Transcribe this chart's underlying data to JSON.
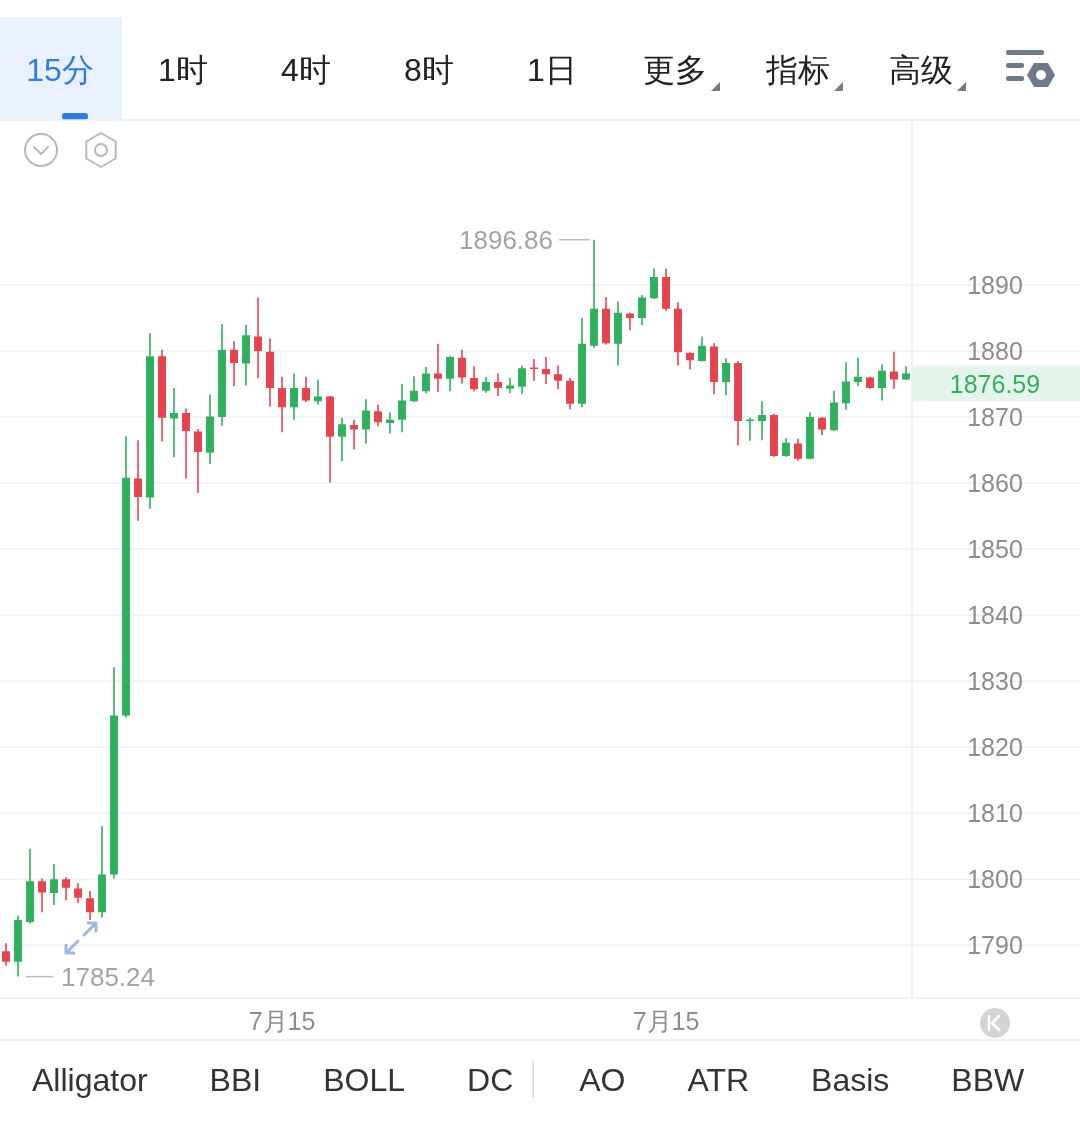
{
  "chart_data": {
    "type": "candlestick",
    "categories": [
      null,
      null,
      null,
      null,
      null,
      null,
      null,
      null,
      null,
      null,
      null,
      null,
      null,
      null,
      null,
      null,
      null,
      null,
      null,
      null,
      null,
      null,
      null,
      "7月15",
      null,
      null,
      null,
      null,
      null,
      null,
      null,
      null,
      null,
      null,
      null,
      null,
      null,
      null,
      null,
      null,
      null,
      null,
      null,
      null,
      null,
      null,
      null,
      null,
      null,
      null,
      null,
      null,
      null,
      null,
      null,
      "7月15",
      null,
      null,
      null,
      null,
      null,
      null,
      null,
      null,
      null,
      null,
      null,
      null,
      null,
      null,
      null,
      null,
      null,
      null,
      null,
      null
    ],
    "ohlc": [
      [
        1789.1,
        1790.3,
        1786.9,
        1787.5
      ],
      [
        1787.5,
        1794.5,
        1785.24,
        1793.8
      ],
      [
        1793.5,
        1804.6,
        1793.3,
        1799.7
      ],
      [
        1799.7,
        1800.1,
        1795.0,
        1798.0
      ],
      [
        1797.9,
        1802.3,
        1796.1,
        1800.0
      ],
      [
        1800.0,
        1800.3,
        1796.8,
        1798.7
      ],
      [
        1798.6,
        1799.4,
        1796.4,
        1797.2
      ],
      [
        1797.1,
        1798.2,
        1793.8,
        1795.0
      ],
      [
        1795.0,
        1808.0,
        1794.2,
        1800.7
      ],
      [
        1800.7,
        1832.1,
        1800.1,
        1824.8
      ],
      [
        1824.8,
        1867.1,
        1824.5,
        1860.8
      ],
      [
        1860.7,
        1866.5,
        1854.3,
        1857.9
      ],
      [
        1857.8,
        1882.7,
        1856.1,
        1879.2
      ],
      [
        1879.2,
        1880.2,
        1866.3,
        1869.9
      ],
      [
        1869.8,
        1874.4,
        1863.9,
        1870.6
      ],
      [
        1870.6,
        1871.3,
        1860.7,
        1867.9
      ],
      [
        1867.8,
        1868.2,
        1858.5,
        1864.7
      ],
      [
        1864.6,
        1873.4,
        1862.9,
        1870.1
      ],
      [
        1870.0,
        1884.1,
        1868.7,
        1880.2
      ],
      [
        1880.2,
        1881.5,
        1874.7,
        1878.2
      ],
      [
        1878.1,
        1884.0,
        1874.8,
        1882.4
      ],
      [
        1882.2,
        1888.1,
        1875.9,
        1880.0
      ],
      [
        1879.9,
        1881.9,
        1871.6,
        1874.4
      ],
      [
        1874.4,
        1876.1,
        1867.7,
        1871.5
      ],
      [
        1871.5,
        1876.6,
        1869.6,
        1874.4
      ],
      [
        1874.4,
        1876.1,
        1872.3,
        1872.5
      ],
      [
        1872.4,
        1875.7,
        1871.9,
        1873.1
      ],
      [
        1873.1,
        1873.2,
        1860.1,
        1867.0
      ],
      [
        1867.0,
        1869.9,
        1863.3,
        1868.9
      ],
      [
        1868.8,
        1869.6,
        1865.1,
        1868.1
      ],
      [
        1868.1,
        1872.7,
        1866.0,
        1871.0
      ],
      [
        1870.9,
        1871.9,
        1868.6,
        1869.2
      ],
      [
        1869.1,
        1870.7,
        1867.5,
        1869.6
      ],
      [
        1869.6,
        1875.0,
        1867.7,
        1872.5
      ],
      [
        1872.4,
        1876.2,
        1872.3,
        1874.0
      ],
      [
        1873.9,
        1877.6,
        1873.6,
        1876.6
      ],
      [
        1876.6,
        1881.1,
        1873.8,
        1875.8
      ],
      [
        1875.8,
        1879.2,
        1873.9,
        1879.1
      ],
      [
        1879.0,
        1880.2,
        1875.1,
        1876.0
      ],
      [
        1875.9,
        1877.7,
        1873.9,
        1874.2
      ],
      [
        1874.0,
        1876.1,
        1873.7,
        1875.3
      ],
      [
        1875.3,
        1876.6,
        1873.2,
        1874.4
      ],
      [
        1874.3,
        1875.9,
        1873.6,
        1874.8
      ],
      [
        1874.6,
        1877.8,
        1873.5,
        1877.4
      ],
      [
        1877.5,
        1878.8,
        1875.5,
        1877.3
      ],
      [
        1877.3,
        1879.1,
        1875.0,
        1876.5
      ],
      [
        1876.5,
        1877.8,
        1874.2,
        1875.5
      ],
      [
        1875.5,
        1875.9,
        1871.2,
        1872.0
      ],
      [
        1872.0,
        1885.0,
        1871.5,
        1881.1
      ],
      [
        1880.8,
        1896.86,
        1880.5,
        1886.4
      ],
      [
        1886.4,
        1888.2,
        1881.0,
        1881.2
      ],
      [
        1881.1,
        1887.5,
        1877.8,
        1885.8
      ],
      [
        1885.7,
        1885.8,
        1883.2,
        1885.0
      ],
      [
        1885.0,
        1888.5,
        1883.9,
        1888.1
      ],
      [
        1888.0,
        1892.5,
        1887.9,
        1891.2
      ],
      [
        1891.2,
        1892.5,
        1886.1,
        1886.4
      ],
      [
        1886.4,
        1887.4,
        1877.8,
        1879.8
      ],
      [
        1879.7,
        1879.8,
        1877.2,
        1878.6
      ],
      [
        1878.5,
        1882.2,
        1878.4,
        1880.8
      ],
      [
        1880.7,
        1881.2,
        1873.5,
        1875.3
      ],
      [
        1875.3,
        1878.9,
        1873.3,
        1878.2
      ],
      [
        1878.2,
        1878.5,
        1865.7,
        1869.4
      ],
      [
        1869.4,
        1869.9,
        1866.4,
        1869.6
      ],
      [
        1869.4,
        1872.4,
        1866.5,
        1870.3
      ],
      [
        1870.3,
        1870.5,
        1864.0,
        1864.1
      ],
      [
        1864.1,
        1866.8,
        1864.0,
        1866.1
      ],
      [
        1866.0,
        1866.7,
        1863.4,
        1863.7
      ],
      [
        1863.7,
        1870.7,
        1863.6,
        1870.0
      ],
      [
        1869.9,
        1870.0,
        1867.3,
        1868.1
      ],
      [
        1868.0,
        1874.0,
        1867.9,
        1872.2
      ],
      [
        1872.1,
        1878.3,
        1871.1,
        1875.4
      ],
      [
        1875.3,
        1879.0,
        1874.7,
        1876.1
      ],
      [
        1876.0,
        1876.1,
        1874.3,
        1874.4
      ],
      [
        1874.4,
        1878.0,
        1872.5,
        1877.0
      ],
      [
        1876.9,
        1879.9,
        1874.3,
        1875.7
      ],
      [
        1875.7,
        1877.7,
        1875.6,
        1876.59
      ]
    ],
    "colors": [
      "#e5444f",
      "#2eb05c",
      "#2eb05c",
      "#e5444f",
      "#2eb05c",
      "#e5444f",
      "#e5444f",
      "#e5444f",
      "#2eb05c",
      "#2eb05c",
      "#2eb05c",
      "#e5444f",
      "#2eb05c",
      "#e5444f",
      "#2eb05c",
      "#e5444f",
      "#e5444f",
      "#2eb05c",
      "#2eb05c",
      "#e5444f",
      "#2eb05c",
      "#e5444f",
      "#e5444f",
      "#e5444f",
      "#2eb05c",
      "#e5444f",
      "#2eb05c",
      "#e5444f",
      "#2eb05c",
      "#e5444f",
      "#2eb05c",
      "#e5444f",
      "#2eb05c",
      "#2eb05c",
      "#2eb05c",
      "#2eb05c",
      "#e5444f",
      "#2eb05c",
      "#e5444f",
      "#e5444f",
      "#2eb05c",
      "#e5444f",
      "#2eb05c",
      "#2eb05c",
      "#e5444f",
      "#e5444f",
      "#e5444f",
      "#e5444f",
      "#2eb05c",
      "#2eb05c",
      "#e5444f",
      "#2eb05c",
      "#e5444f",
      "#2eb05c",
      "#2eb05c",
      "#e5444f",
      "#e5444f",
      "#e5444f",
      "#2eb05c",
      "#e5444f",
      "#2eb05c",
      "#e5444f",
      "#2eb05c",
      "#2eb05c",
      "#e5444f",
      "#2eb05c",
      "#e5444f",
      "#2eb05c",
      "#e5444f",
      "#2eb05c",
      "#2eb05c",
      "#2eb05c",
      "#e5444f",
      "#2eb05c",
      "#e5444f",
      "#2eb05c"
    ],
    "ylim": [
      1782,
      1915
    ],
    "yticks": [
      1790,
      1800,
      1810,
      1820,
      1830,
      1840,
      1850,
      1860,
      1870,
      1880,
      1890
    ],
    "grid": "y",
    "annotations": [
      "1896.86",
      "1785.24",
      "1876.59",
      "15分",
      "1时",
      "4时",
      "8时",
      "1日",
      "更多",
      "指标",
      "高级",
      "Alligator",
      "BBI",
      "BOLL",
      "DC",
      "AO",
      "ATR",
      "Basis",
      "BBW"
    ]
  }
}
